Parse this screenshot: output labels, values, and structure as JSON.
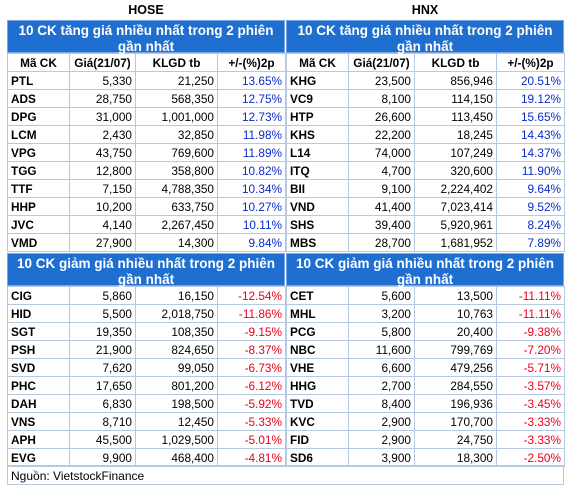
{
  "headers": {
    "hose": "HOSE",
    "hnx": "HNX"
  },
  "columns": [
    "Mã CK",
    "Giá(21/07)",
    "KLGD tb",
    "+/-(%)2p"
  ],
  "sections": {
    "gain_title": "10 CK tăng giá nhiều nhất trong 2 phiên gần nhất",
    "loss_title": "10 CK giảm giá nhiều nhất trong 2 phiên gần nhất"
  },
  "hose_gain": [
    [
      "PTL",
      "5,330",
      "21,250",
      "13.65%"
    ],
    [
      "ADS",
      "28,750",
      "568,350",
      "12.75%"
    ],
    [
      "DPG",
      "31,000",
      "1,001,000",
      "12.73%"
    ],
    [
      "LCM",
      "2,430",
      "32,850",
      "11.98%"
    ],
    [
      "VPG",
      "43,750",
      "769,600",
      "11.89%"
    ],
    [
      "TGG",
      "12,800",
      "358,800",
      "10.82%"
    ],
    [
      "TTF",
      "7,150",
      "4,788,350",
      "10.34%"
    ],
    [
      "HHP",
      "10,200",
      "633,750",
      "10.27%"
    ],
    [
      "JVC",
      "4,140",
      "2,267,450",
      "10.11%"
    ],
    [
      "VMD",
      "27,900",
      "14,300",
      "9.84%"
    ]
  ],
  "hnx_gain": [
    [
      "KHG",
      "23,500",
      "856,946",
      "20.51%"
    ],
    [
      "VC9",
      "8,100",
      "114,150",
      "19.12%"
    ],
    [
      "HTP",
      "26,600",
      "113,450",
      "15.65%"
    ],
    [
      "KHS",
      "22,200",
      "18,245",
      "14.43%"
    ],
    [
      "L14",
      "74,000",
      "107,249",
      "14.37%"
    ],
    [
      "ITQ",
      "4,700",
      "320,600",
      "11.90%"
    ],
    [
      "BII",
      "9,100",
      "2,224,402",
      "9.64%"
    ],
    [
      "VND",
      "41,400",
      "7,023,414",
      "9.52%"
    ],
    [
      "SHS",
      "39,400",
      "5,920,961",
      "8.24%"
    ],
    [
      "MBS",
      "28,700",
      "1,681,952",
      "7.89%"
    ]
  ],
  "hose_loss": [
    [
      "CIG",
      "5,860",
      "16,150",
      "-12.54%"
    ],
    [
      "HID",
      "5,500",
      "2,018,750",
      "-11.86%"
    ],
    [
      "SGT",
      "19,350",
      "108,350",
      "-9.15%"
    ],
    [
      "PSH",
      "21,900",
      "824,650",
      "-8.37%"
    ],
    [
      "SVD",
      "7,620",
      "99,050",
      "-6.73%"
    ],
    [
      "PHC",
      "17,650",
      "801,200",
      "-6.12%"
    ],
    [
      "DAH",
      "6,830",
      "198,500",
      "-5.92%"
    ],
    [
      "VNS",
      "8,710",
      "12,450",
      "-5.33%"
    ],
    [
      "APH",
      "45,500",
      "1,029,500",
      "-5.01%"
    ],
    [
      "EVG",
      "9,900",
      "468,400",
      "-4.81%"
    ]
  ],
  "hnx_loss": [
    [
      "CET",
      "5,600",
      "13,500",
      "-11.11%"
    ],
    [
      "MHL",
      "3,200",
      "10,763",
      "-11.11%"
    ],
    [
      "PCG",
      "5,800",
      "20,400",
      "-9.38%"
    ],
    [
      "NBC",
      "11,600",
      "799,769",
      "-7.20%"
    ],
    [
      "VHE",
      "6,600",
      "479,256",
      "-5.71%"
    ],
    [
      "HHG",
      "2,700",
      "284,550",
      "-3.57%"
    ],
    [
      "TVD",
      "8,400",
      "196,936",
      "-3.45%"
    ],
    [
      "KVC",
      "2,900",
      "170,700",
      "-3.33%"
    ],
    [
      "FID",
      "2,900",
      "24,750",
      "-3.33%"
    ],
    [
      "SD6",
      "3,900",
      "18,300",
      "-2.50%"
    ]
  ],
  "colors": {
    "title_bg": "#1f6fd0",
    "up": "#0a2bc9",
    "down": "#e8001c"
  },
  "source": "Nguồn: VietstockFinance"
}
